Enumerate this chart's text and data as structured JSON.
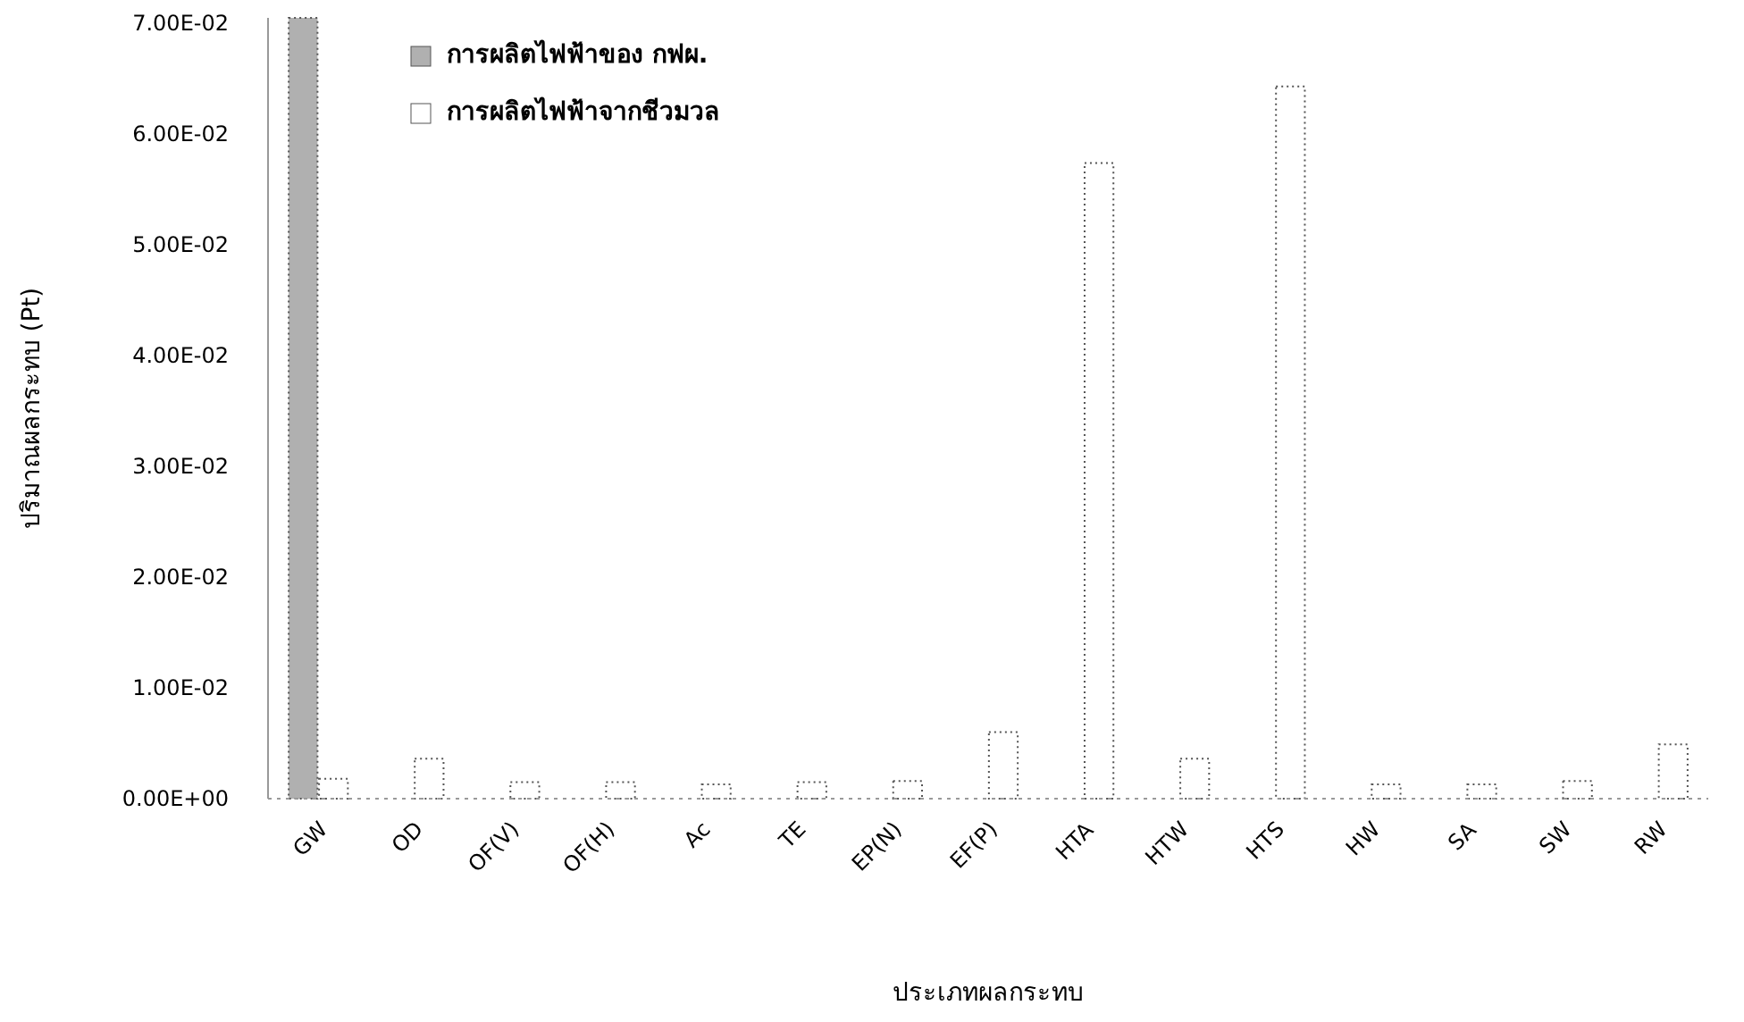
{
  "chart_data": {
    "type": "bar",
    "xlabel": "ประเภทผลกระทบ",
    "ylabel": "ปริมาณผลกระทบ (Pt)",
    "categories": [
      "GW",
      "OD",
      "OF(V)",
      "OF(H)",
      "Ac",
      "TE",
      "EP(N)",
      "EF(P)",
      "HTA",
      "HTW",
      "HTS",
      "HW",
      "SA",
      "SW",
      "RW"
    ],
    "series": [
      {
        "name": "การผลิตไฟฟ้าของ กฟผ.",
        "color": "#b0b0b0",
        "values": [
          0.0705,
          null,
          null,
          null,
          null,
          null,
          null,
          null,
          null,
          null,
          null,
          null,
          null,
          null,
          null
        ]
      },
      {
        "name": "การผลิตไฟฟ้าจากชีวมวล",
        "color": "#ffffff",
        "values": [
          0.0018,
          0.0036,
          0.0015,
          0.0015,
          0.0013,
          0.0015,
          0.0016,
          0.006,
          0.0574,
          0.0036,
          0.0643,
          0.0013,
          0.0013,
          0.0016,
          0.0049
        ]
      }
    ],
    "ylim": [
      0,
      0.0705
    ],
    "yticks": [
      {
        "value": 0,
        "label": "0.00E+00"
      },
      {
        "value": 0.01,
        "label": "1.00E-02"
      },
      {
        "value": 0.02,
        "label": "2.00E-02"
      },
      {
        "value": 0.03,
        "label": "3.00E-02"
      },
      {
        "value": 0.04,
        "label": "4.00E-02"
      },
      {
        "value": 0.05,
        "label": "5.00E-02"
      },
      {
        "value": 0.06,
        "label": "6.00E-02"
      },
      {
        "value": 0.07,
        "label": "7.00E-02"
      }
    ],
    "grid": false,
    "legend": "top left"
  }
}
